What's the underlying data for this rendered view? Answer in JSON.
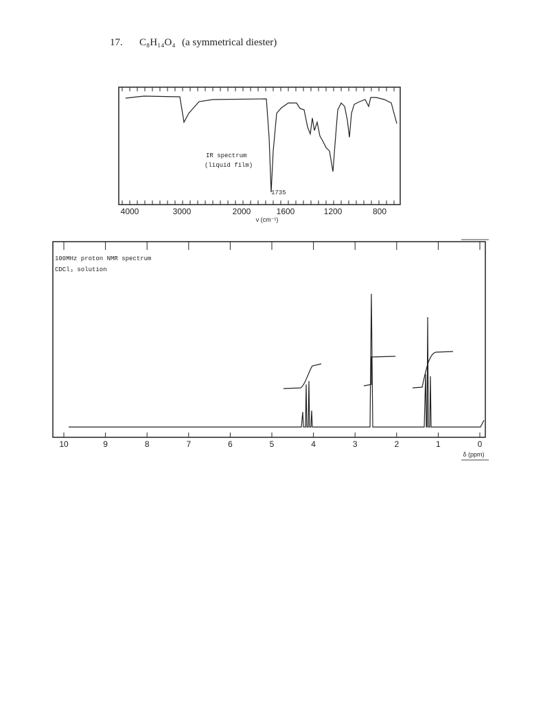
{
  "problem": {
    "number": "17.",
    "formula": "C₈H₁₄O₄",
    "description": "(a symmetrical diester)"
  },
  "ir": {
    "title": "IR spectrum",
    "subtitle": "(liquid film)",
    "annotation": "1735",
    "axis_label": "ν (cm⁻¹)",
    "x_tick_labels": [
      "4000",
      "3000",
      "2000",
      "1600",
      "1200",
      "800"
    ]
  },
  "nmr": {
    "title": "100MHz proton NMR spectrum",
    "subtitle": "CDCl₃ solution",
    "axis_label": "δ (ppm)",
    "x_tick_labels": [
      "10",
      "9",
      "8",
      "7",
      "6",
      "5",
      "4",
      "3",
      "2",
      "1",
      "0"
    ]
  }
}
